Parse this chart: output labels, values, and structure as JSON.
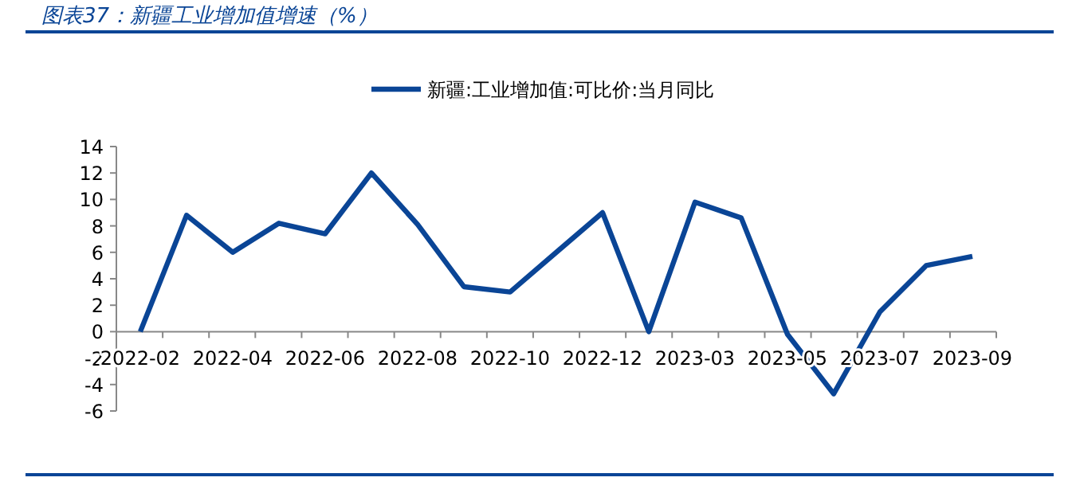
{
  "chart_data": {
    "type": "line",
    "title": "图表37：新疆工业增加值增速（%）",
    "categories": [
      "2022-02",
      null,
      "2022-04",
      null,
      "2022-06",
      null,
      "2022-08",
      null,
      "2022-10",
      null,
      "2022-12",
      null,
      "2023-03",
      null,
      "2023-05",
      null,
      "2023-07",
      null,
      "2023-09"
    ],
    "series": [
      {
        "name": "新疆:工业增加值:可比价:当月同比",
        "color": "#0a4596",
        "values": [
          0,
          8.8,
          6.0,
          8.2,
          7.4,
          12.0,
          8.1,
          3.4,
          3.0,
          6.0,
          9.0,
          0,
          9.8,
          8.6,
          -0.2,
          -4.7,
          1.5,
          5.0,
          5.7
        ]
      }
    ],
    "ylim": [
      -6,
      14
    ],
    "yticks": [
      -6,
      -4,
      -2,
      0,
      2,
      4,
      6,
      8,
      10,
      12,
      14
    ],
    "legend": "top",
    "grid": false,
    "marker": "none",
    "line_style": "solid"
  }
}
